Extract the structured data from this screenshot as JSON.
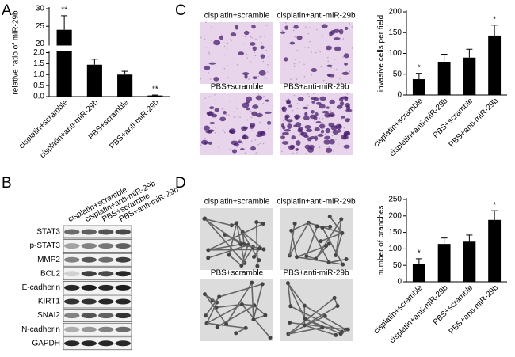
{
  "panel_labels": [
    "A",
    "B",
    "C",
    "D"
  ],
  "chart_data": [
    {
      "type": "bar",
      "y_label": "relative ratio of miR-29b",
      "categories": [
        "cisplatin+scramble",
        "cisplatin+anti-miR-29b",
        "PBS+scramble",
        "PBS+anti-miR-29b"
      ],
      "values": [
        24,
        1.45,
        1.0,
        0.05
      ],
      "errors": [
        4,
        0.25,
        0.15,
        0.02
      ],
      "annotations": [
        "**",
        null,
        null,
        "**"
      ],
      "color": "#000000",
      "ylim": [
        0,
        30
      ],
      "ybreak": [
        2,
        20
      ],
      "yticks": [
        {
          "value": 0,
          "label": "0.0"
        },
        0.5,
        {
          "value": 1,
          "label": "1.0"
        },
        1.5,
        {
          "value": 2,
          "label": "2.0"
        },
        20,
        25,
        30
      ]
    },
    {
      "type": "bar",
      "y_label": "invasive cells per field",
      "categories": [
        "cisplatin+scramble",
        "cisplatin+anti-miR-29b",
        "PBS+scramble",
        "PBS+anti-miR-29b"
      ],
      "values": [
        38,
        80,
        90,
        143
      ],
      "errors": [
        14,
        18,
        20,
        25
      ],
      "annotations": [
        "*",
        null,
        null,
        "*"
      ],
      "color": "#000000",
      "ylim": [
        0,
        200
      ],
      "yticks": [
        0,
        50,
        100,
        150,
        200
      ]
    },
    {
      "type": "bar",
      "y_label": "number of branches",
      "categories": [
        "cisplatin+scramble",
        "cisplatin+anti-miR-29b",
        "PBS+scramble",
        "PBS+anti-miR-29b"
      ],
      "values": [
        55,
        115,
        122,
        188
      ],
      "errors": [
        15,
        18,
        20,
        28
      ],
      "annotations": [
        "*",
        null,
        null,
        "*"
      ],
      "color": "#000000",
      "ylim": [
        0,
        250
      ],
      "yticks": [
        0,
        50,
        100,
        150,
        200,
        250
      ]
    }
  ],
  "blot": {
    "lanes": [
      "cisplatin+scramble",
      "cisplatin+anti-miR-29b",
      "PBS+scramble",
      "PBS+anti-miR-29b"
    ],
    "proteins": [
      "STAT3",
      "p-STAT3",
      "MMP2",
      "BCL2",
      "E-cadherin",
      "KIRT1",
      "SNAI2",
      "N-cadherin",
      "GAPDH"
    ]
  },
  "images_c": [
    "cisplatin+scramble",
    "cisplatin+anti-miR-29b",
    "PBS+scramble",
    "PBS+anti-miR-29b"
  ],
  "images_d": [
    "cisplatin+scramble",
    "cisplatin+anti-miR-29b",
    "PBS+scramble",
    "PBS+anti-miR-29b"
  ]
}
